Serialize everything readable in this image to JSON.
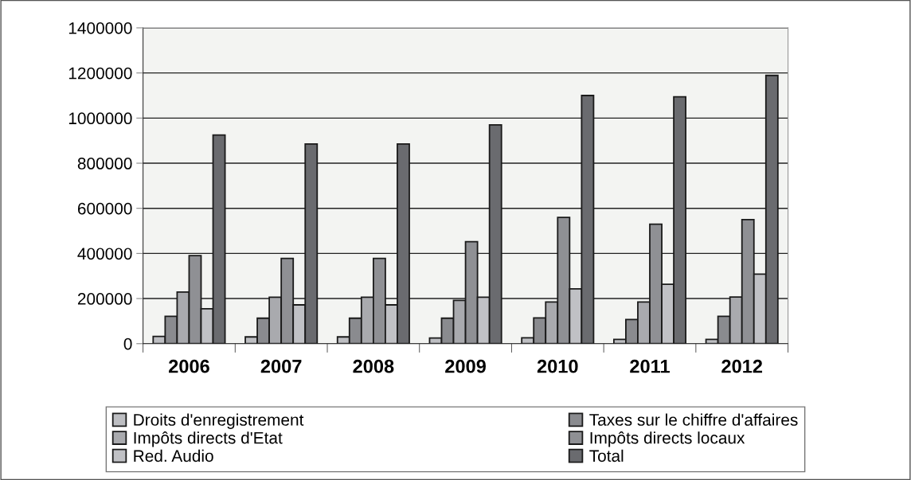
{
  "chart_data": {
    "type": "bar",
    "categories": [
      "2006",
      "2007",
      "2008",
      "2009",
      "2010",
      "2011",
      "2012"
    ],
    "series": [
      {
        "name": "Droits d'enregistrement",
        "color": "#bdbec2",
        "values": [
          32000,
          30000,
          30000,
          25000,
          26000,
          19000,
          19000
        ]
      },
      {
        "name": "Taxes sur le chiffre d'affaires",
        "color": "#8a8b8f",
        "values": [
          121000,
          113000,
          113000,
          113000,
          114000,
          107000,
          121000
        ]
      },
      {
        "name": "Impôts directs d'Etat",
        "color": "#a9aaae",
        "values": [
          229000,
          206000,
          206000,
          192000,
          185000,
          185000,
          207000
        ]
      },
      {
        "name": "Impôts directs locaux",
        "color": "#8f9094",
        "values": [
          390000,
          378000,
          378000,
          452000,
          560000,
          530000,
          550000
        ]
      },
      {
        "name": "Red. Audio",
        "color": "#c0c1c5",
        "values": [
          155000,
          172000,
          172000,
          206000,
          243000,
          263000,
          308000
        ]
      },
      {
        "name": "Total",
        "color": "#6a6b6f",
        "values": [
          925000,
          885000,
          885000,
          970000,
          1100000,
          1094000,
          1189000
        ]
      }
    ],
    "ylim": [
      0,
      1400000
    ],
    "yticks": [
      0,
      200000,
      400000,
      600000,
      800000,
      1000000,
      1200000,
      1400000
    ],
    "grid": "y",
    "legend": "bottom"
  }
}
